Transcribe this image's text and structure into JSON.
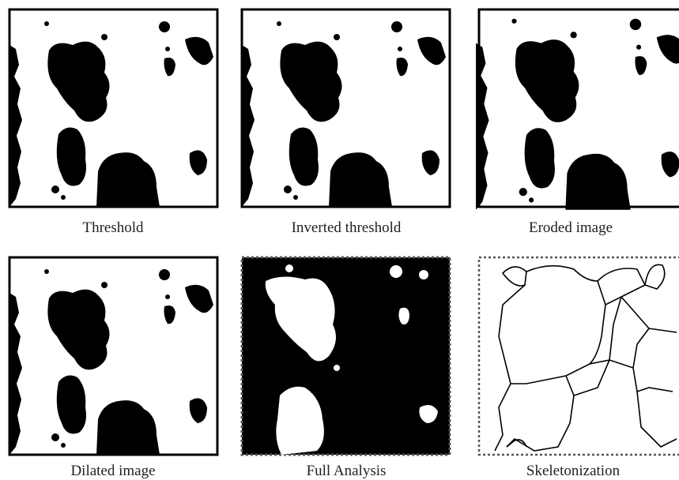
{
  "panels": [
    {
      "caption": "Threshold"
    },
    {
      "caption": "Inverted threshold"
    },
    {
      "caption": "Eroded image"
    },
    {
      "caption": "Dilated image"
    },
    {
      "caption": "Full Analysis"
    },
    {
      "caption": "Skeletonization"
    }
  ]
}
